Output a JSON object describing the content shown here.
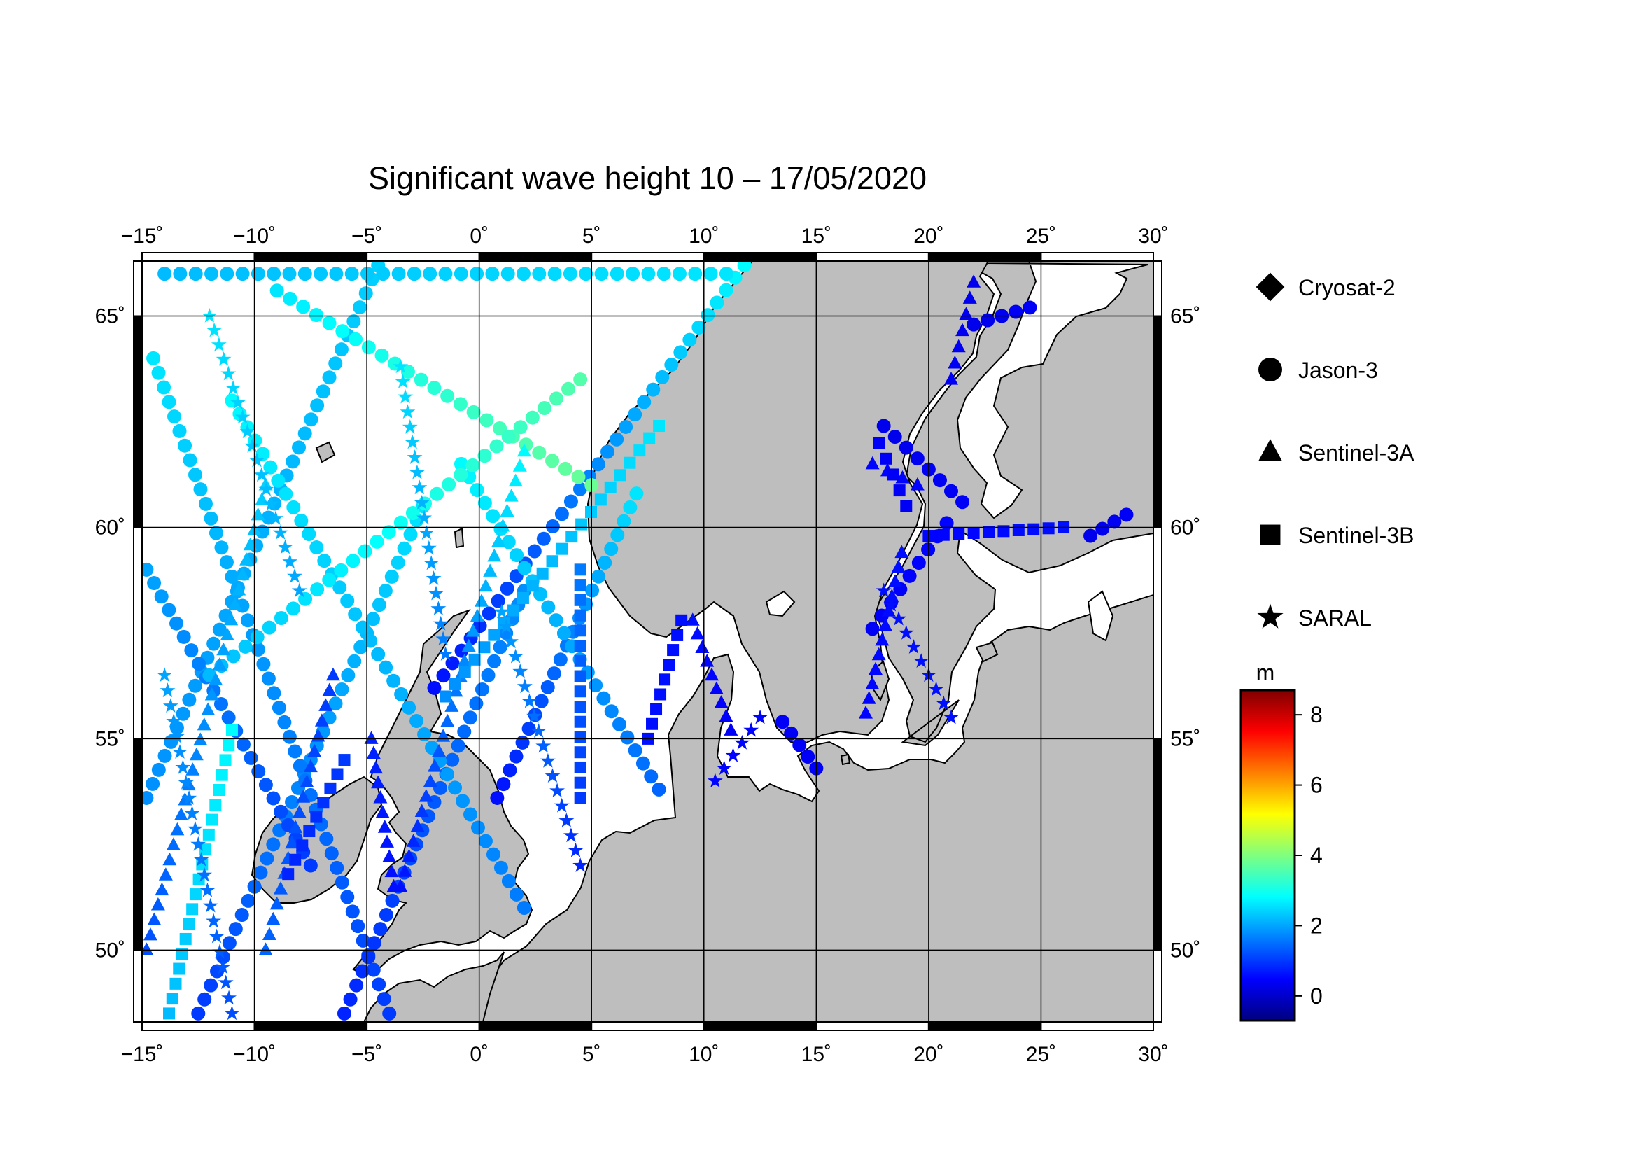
{
  "title": "Significant wave height 10 – 17/05/2020",
  "map": {
    "lon_range": [
      -15,
      30
    ],
    "lat_range": [
      48.3,
      66.3
    ],
    "lon_ticks": [
      {
        "value": -15,
        "label": "−15˚"
      },
      {
        "value": -10,
        "label": "−10˚"
      },
      {
        "value": -5,
        "label": "−5˚"
      },
      {
        "value": 0,
        "label": "0˚"
      },
      {
        "value": 5,
        "label": "5˚"
      },
      {
        "value": 10,
        "label": "10˚"
      },
      {
        "value": 15,
        "label": "15˚"
      },
      {
        "value": 20,
        "label": "20˚"
      },
      {
        "value": 25,
        "label": "25˚"
      },
      {
        "value": 30,
        "label": "30˚"
      }
    ],
    "lat_ticks": [
      {
        "value": 50,
        "label": "50˚"
      },
      {
        "value": 55,
        "label": "55˚"
      },
      {
        "value": 60,
        "label": "60˚"
      },
      {
        "value": 65,
        "label": "65˚"
      }
    ],
    "land_color": "#bebebe",
    "sea_color": "#ffffff",
    "grid": true
  },
  "legend": [
    {
      "name": "Cryosat-2",
      "symbol": "diamond"
    },
    {
      "name": "Jason-3",
      "symbol": "circle"
    },
    {
      "name": "Sentinel-3A",
      "symbol": "triangle"
    },
    {
      "name": "Sentinel-3B",
      "symbol": "square"
    },
    {
      "name": "SARAL",
      "symbol": "star"
    }
  ],
  "colorbar": {
    "unit": "m",
    "range": [
      -0.7,
      8.7
    ],
    "ticks": [
      {
        "value": 0,
        "label": "0"
      },
      {
        "value": 2,
        "label": "2"
      },
      {
        "value": 4,
        "label": "4"
      },
      {
        "value": 6,
        "label": "6"
      },
      {
        "value": 8,
        "label": "8"
      }
    ],
    "colormap": [
      "#00007f",
      "#0000ff",
      "#007fff",
      "#00ffff",
      "#7fff7f",
      "#ffff00",
      "#ff7f00",
      "#ff0000",
      "#7f0000"
    ]
  },
  "chart_data": {
    "type": "scatter",
    "variable": "significant wave height (m)",
    "tracks": [
      {
        "satellite": "Jason-3",
        "symbol": "circle",
        "from": [
          -14.8,
          53.6
        ],
        "to": [
          -4.5,
          66.2
        ],
        "swh": [
          1.8,
          2.4
        ]
      },
      {
        "satellite": "Jason-3",
        "symbol": "circle",
        "from": [
          -12.5,
          48.5
        ],
        "to": [
          -2.5,
          60.5
        ],
        "swh": [
          1.0,
          2.6
        ]
      },
      {
        "satellite": "Jason-3",
        "symbol": "circle",
        "from": [
          -14.8,
          59.0
        ],
        "to": [
          -7.5,
          52.0
        ],
        "swh": [
          2.0,
          1.0
        ]
      },
      {
        "satellite": "Jason-3",
        "symbol": "circle",
        "from": [
          -14.5,
          64.0
        ],
        "to": [
          -4.0,
          48.5
        ],
        "swh": [
          2.6,
          1.0
        ]
      },
      {
        "satellite": "Jason-3",
        "symbol": "circle",
        "from": [
          -6.0,
          48.5
        ],
        "to": [
          2.0,
          58.5
        ],
        "swh": [
          0.8,
          1.8
        ]
      },
      {
        "satellite": "Jason-3",
        "symbol": "circle",
        "from": [
          -2.0,
          56.2
        ],
        "to": [
          11.8,
          66.2
        ],
        "swh": [
          0.6,
          2.8
        ]
      },
      {
        "satellite": "Jason-3",
        "symbol": "circle",
        "from": [
          0.8,
          53.6
        ],
        "to": [
          7.0,
          60.8
        ],
        "swh": [
          0.6,
          2.6
        ]
      },
      {
        "satellite": "Jason-3",
        "symbol": "circle",
        "from": [
          -0.8,
          61.5
        ],
        "to": [
          8.0,
          53.8
        ],
        "swh": [
          2.8,
          1.4
        ]
      },
      {
        "satellite": "Jason-3",
        "symbol": "circle",
        "from": [
          -11.0,
          63.0
        ],
        "to": [
          2.0,
          51.0
        ],
        "swh": [
          2.8,
          1.6
        ]
      },
      {
        "satellite": "Jason-3",
        "symbol": "circle",
        "from": [
          -14.0,
          66.0
        ],
        "to": [
          11.0,
          66.0
        ],
        "swh": [
          2.2,
          2.6
        ]
      },
      {
        "satellite": "Jason-3",
        "symbol": "circle",
        "from": [
          -9.0,
          65.6
        ],
        "to": [
          5.0,
          61.0
        ],
        "swh": [
          2.6,
          3.8
        ]
      },
      {
        "satellite": "Jason-3",
        "symbol": "circle",
        "from": [
          4.5,
          63.5
        ],
        "to": [
          -12.0,
          56.5
        ],
        "swh": [
          3.6,
          2.2
        ]
      },
      {
        "satellite": "Jason-3",
        "symbol": "circle",
        "from": [
          13.5,
          55.4
        ],
        "to": [
          15.0,
          54.3
        ],
        "swh": [
          0.4,
          0.4
        ]
      },
      {
        "satellite": "Jason-3",
        "symbol": "circle",
        "from": [
          18.0,
          62.4
        ],
        "to": [
          21.5,
          60.6
        ],
        "swh": [
          0.3,
          0.4
        ]
      },
      {
        "satellite": "Jason-3",
        "symbol": "circle",
        "from": [
          17.5,
          57.6
        ],
        "to": [
          20.8,
          60.1
        ],
        "swh": [
          0.4,
          0.5
        ]
      },
      {
        "satellite": "Jason-3",
        "symbol": "circle",
        "from": [
          22.0,
          64.8
        ],
        "to": [
          24.5,
          65.2
        ],
        "swh": [
          0.3,
          0.4
        ]
      },
      {
        "satellite": "Jason-3",
        "symbol": "circle",
        "from": [
          27.2,
          59.8
        ],
        "to": [
          28.8,
          60.3
        ],
        "swh": [
          0.3,
          0.4
        ]
      },
      {
        "satellite": "Sentinel-3A",
        "symbol": "triangle",
        "from": [
          -14.8,
          50.0
        ],
        "to": [
          -9.5,
          61.0
        ],
        "swh": [
          1.2,
          2.4
        ]
      },
      {
        "satellite": "Sentinel-3A",
        "symbol": "triangle",
        "from": [
          -6.5,
          56.5
        ],
        "to": [
          -9.5,
          50.0
        ],
        "swh": [
          1.0,
          1.4
        ]
      },
      {
        "satellite": "Sentinel-3A",
        "symbol": "triangle",
        "from": [
          -3.5,
          51.5
        ],
        "to": [
          2.0,
          61.8
        ],
        "swh": [
          0.6,
          2.8
        ]
      },
      {
        "satellite": "Sentinel-3A",
        "symbol": "triangle",
        "from": [
          -4.8,
          55.0
        ],
        "to": [
          -3.8,
          51.5
        ],
        "swh": [
          0.8,
          0.6
        ]
      },
      {
        "satellite": "Sentinel-3A",
        "symbol": "triangle",
        "from": [
          9.5,
          57.8
        ],
        "to": [
          11.2,
          55.2
        ],
        "swh": [
          0.6,
          0.4
        ]
      },
      {
        "satellite": "Sentinel-3A",
        "symbol": "triangle",
        "from": [
          17.2,
          55.6
        ],
        "to": [
          18.8,
          59.4
        ],
        "swh": [
          0.5,
          0.6
        ]
      },
      {
        "satellite": "Sentinel-3A",
        "symbol": "triangle",
        "from": [
          22.0,
          65.8
        ],
        "to": [
          21.0,
          63.5
        ],
        "swh": [
          0.3,
          0.4
        ]
      },
      {
        "satellite": "Sentinel-3A",
        "symbol": "triangle",
        "from": [
          17.5,
          61.5
        ],
        "to": [
          19.5,
          61.0
        ],
        "swh": [
          0.5,
          0.5
        ]
      },
      {
        "satellite": "Sentinel-3B",
        "symbol": "square",
        "from": [
          -13.8,
          48.5
        ],
        "to": [
          -11.0,
          55.2
        ],
        "swh": [
          2.2,
          2.8
        ]
      },
      {
        "satellite": "Sentinel-3B",
        "symbol": "square",
        "from": [
          -1.5,
          56.0
        ],
        "to": [
          8.0,
          62.4
        ],
        "swh": [
          1.8,
          2.6
        ]
      },
      {
        "satellite": "Sentinel-3B",
        "symbol": "square",
        "from": [
          4.5,
          53.6
        ],
        "to": [
          4.5,
          59.0
        ],
        "swh": [
          1.0,
          1.6
        ]
      },
      {
        "satellite": "Sentinel-3B",
        "symbol": "square",
        "from": [
          7.5,
          55.0
        ],
        "to": [
          9.0,
          57.8
        ],
        "swh": [
          0.6,
          0.6
        ]
      },
      {
        "satellite": "Sentinel-3B",
        "symbol": "square",
        "from": [
          -8.5,
          51.8
        ],
        "to": [
          -6.0,
          54.5
        ],
        "swh": [
          0.8,
          1.0
        ]
      },
      {
        "satellite": "Sentinel-3B",
        "symbol": "square",
        "from": [
          17.8,
          62.0
        ],
        "to": [
          19.0,
          60.5
        ],
        "swh": [
          0.4,
          0.4
        ]
      },
      {
        "satellite": "Sentinel-3B",
        "symbol": "square",
        "from": [
          20.0,
          59.8
        ],
        "to": [
          26.0,
          60.0
        ],
        "swh": [
          0.5,
          0.6
        ]
      },
      {
        "satellite": "SARAL",
        "symbol": "star",
        "from": [
          -14.0,
          56.5
        ],
        "to": [
          -11.0,
          48.5
        ],
        "swh": [
          2.0,
          1.2
        ]
      },
      {
        "satellite": "SARAL",
        "symbol": "star",
        "from": [
          -1.5,
          57.0
        ],
        "to": [
          -3.5,
          63.8
        ],
        "swh": [
          1.6,
          2.6
        ]
      },
      {
        "satellite": "SARAL",
        "symbol": "star",
        "from": [
          1.0,
          58.0
        ],
        "to": [
          4.5,
          52.0
        ],
        "swh": [
          2.0,
          0.8
        ]
      },
      {
        "satellite": "SARAL",
        "symbol": "star",
        "from": [
          -12.0,
          65.0
        ],
        "to": [
          -8.0,
          58.5
        ],
        "swh": [
          2.6,
          2.0
        ]
      },
      {
        "satellite": "SARAL",
        "symbol": "star",
        "from": [
          18.0,
          58.5
        ],
        "to": [
          21.0,
          55.5
        ],
        "swh": [
          0.6,
          0.6
        ]
      },
      {
        "satellite": "SARAL",
        "symbol": "star",
        "from": [
          10.5,
          54.0
        ],
        "to": [
          12.5,
          55.5
        ],
        "swh": [
          0.5,
          0.5
        ]
      }
    ]
  }
}
